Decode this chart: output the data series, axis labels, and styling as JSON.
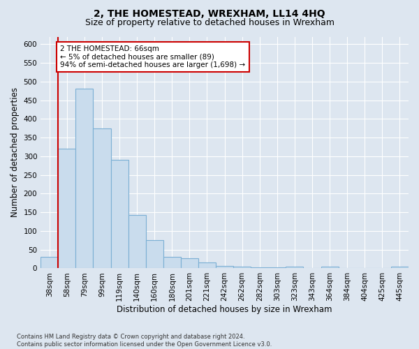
{
  "title": "2, THE HOMESTEAD, WREXHAM, LL14 4HQ",
  "subtitle": "Size of property relative to detached houses in Wrexham",
  "xlabel": "Distribution of detached houses by size in Wrexham",
  "ylabel": "Number of detached properties",
  "categories": [
    "38sqm",
    "58sqm",
    "79sqm",
    "99sqm",
    "119sqm",
    "140sqm",
    "160sqm",
    "180sqm",
    "201sqm",
    "221sqm",
    "242sqm",
    "262sqm",
    "282sqm",
    "303sqm",
    "323sqm",
    "343sqm",
    "364sqm",
    "384sqm",
    "404sqm",
    "425sqm",
    "445sqm"
  ],
  "values": [
    30,
    320,
    480,
    375,
    290,
    143,
    75,
    30,
    27,
    15,
    7,
    5,
    3,
    3,
    5,
    0,
    5,
    0,
    0,
    0,
    5
  ],
  "bar_color": "#c9dced",
  "bar_edge_color": "#7bafd4",
  "highlight_color": "#cc0000",
  "annotation_text": "2 THE HOMESTEAD: 66sqm\n← 5% of detached houses are smaller (89)\n94% of semi-detached houses are larger (1,698) →",
  "annotation_box_color": "#ffffff",
  "annotation_box_edge": "#cc0000",
  "ylim": [
    0,
    620
  ],
  "yticks": [
    0,
    50,
    100,
    150,
    200,
    250,
    300,
    350,
    400,
    450,
    500,
    550,
    600
  ],
  "background_color": "#dde6f0",
  "plot_bg_color": "#dde6f0",
  "footer_text": "Contains HM Land Registry data © Crown copyright and database right 2024.\nContains public sector information licensed under the Open Government Licence v3.0.",
  "title_fontsize": 10,
  "subtitle_fontsize": 9,
  "axis_label_fontsize": 8.5,
  "tick_fontsize": 7.5,
  "annotation_fontsize": 7.5
}
